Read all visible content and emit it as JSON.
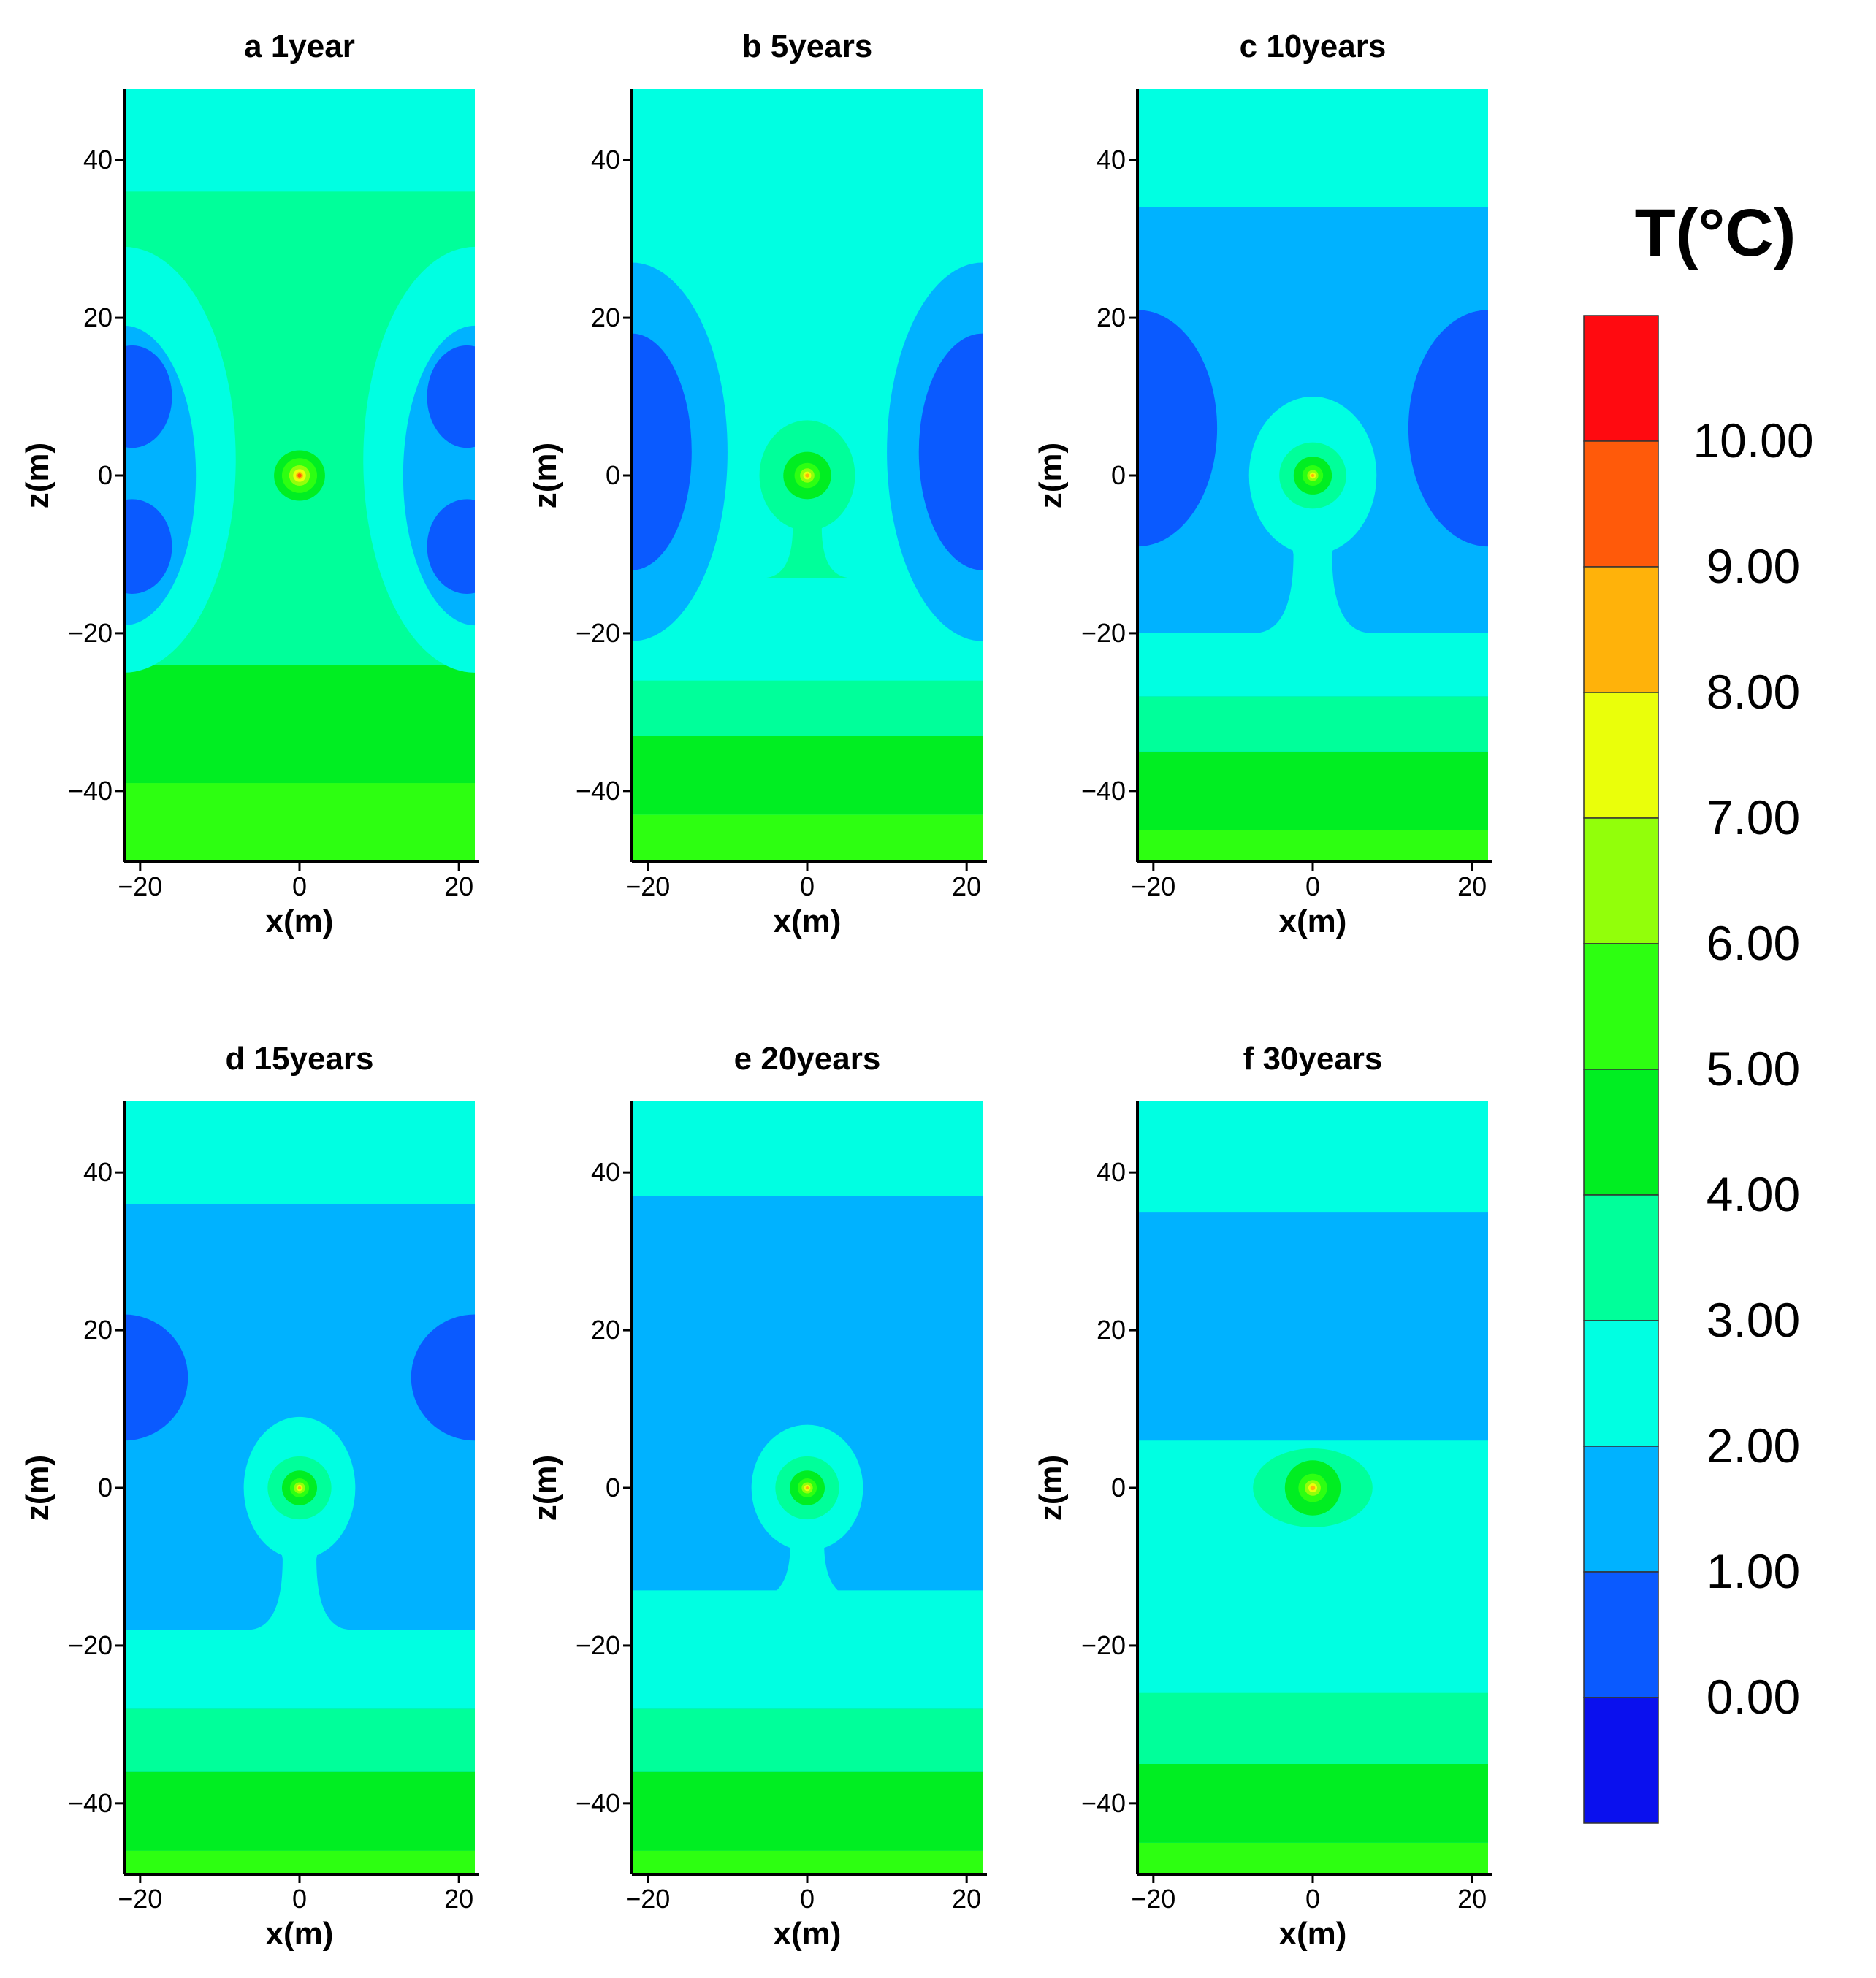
{
  "chart_data": {
    "type": "heatmap",
    "variable": "T",
    "colorbar": {
      "title": "T(°C)",
      "levels": [
        -1,
        0,
        1,
        2,
        3,
        4,
        5,
        6,
        7,
        8,
        9,
        10,
        11
      ],
      "tick_labels": [
        "0.00",
        "1.00",
        "2.00",
        "3.00",
        "4.00",
        "5.00",
        "6.00",
        "7.00",
        "8.00",
        "9.00",
        "10.00"
      ],
      "colors": [
        "#0a10ee",
        "#0a5aff",
        "#00b2ff",
        "#00ffe2",
        "#00ff9a",
        "#00ee22",
        "#2dff11",
        "#92ff0a",
        "#eaff0a",
        "#ffb20a",
        "#ff5a0a",
        "#ff0a10"
      ]
    },
    "x_range": [
      -22,
      22
    ],
    "z_range": [
      -49,
      49
    ],
    "x_ticks": [
      "-20",
      "0",
      "20"
    ],
    "z_ticks": [
      "40",
      "20",
      "0",
      "-20",
      "-40"
    ],
    "xlabel": "x(m)",
    "ylabel": "z(m)",
    "panels": [
      {
        "title": "a 1year",
        "background_level": 3,
        "bands": [
          {
            "z_min": -49,
            "z_max": -39,
            "level": 5
          },
          {
            "z_min": -39,
            "z_max": -24,
            "level": 4
          },
          {
            "z_min": 36,
            "z_max": 49,
            "level": 2
          }
        ],
        "cold_zones": [
          {
            "cx": -22,
            "cz": 2,
            "rx": 14,
            "rz": 27,
            "level": 2
          },
          {
            "cx": 22,
            "cz": 2,
            "rx": 14,
            "rz": 27,
            "level": 2
          },
          {
            "cx": -22,
            "cz": 0,
            "rx": 9,
            "rz": 19,
            "level": 1
          },
          {
            "cx": 22,
            "cz": 0,
            "rx": 9,
            "rz": 19,
            "level": 1
          },
          {
            "cx": -21,
            "cz": 10,
            "rx": 5,
            "rz": 6.5,
            "level": 0
          },
          {
            "cx": 21,
            "cz": 10,
            "rx": 5,
            "rz": 6.5,
            "level": 0
          },
          {
            "cx": -21,
            "cz": -9,
            "rx": 5,
            "rz": 6,
            "level": 0
          },
          {
            "cx": 21,
            "cz": -9,
            "rx": 5,
            "rz": 6,
            "level": 0
          }
        ],
        "plume": {
          "rx": 6.5,
          "rz": 6.5,
          "tail": 0,
          "level": 3
        },
        "source": {
          "rings": [
            {
              "r": 3.2,
              "level": 4
            },
            {
              "r": 2.2,
              "level": 5
            },
            {
              "r": 1.3,
              "level": 6
            },
            {
              "r": 0.8,
              "level": 7
            },
            {
              "r": 0.45,
              "level": 8
            },
            {
              "r": 0.25,
              "level": 9
            }
          ]
        }
      },
      {
        "title": "b 5years",
        "background_level": 2,
        "bands": [
          {
            "z_min": -49,
            "z_max": -43,
            "level": 5
          },
          {
            "z_min": -43,
            "z_max": -33,
            "level": 4
          },
          {
            "z_min": -33,
            "z_max": -26,
            "level": 3
          }
        ],
        "cold_zones": [
          {
            "cx": -22,
            "cz": 3,
            "rx": 12,
            "rz": 24,
            "level": 1
          },
          {
            "cx": 22,
            "cz": 3,
            "rx": 12,
            "rz": 24,
            "level": 1
          },
          {
            "cx": -22,
            "cz": 3,
            "rx": 7.5,
            "rz": 15,
            "level": 0
          },
          {
            "cx": 22,
            "cz": 3,
            "rx": 8,
            "rz": 15,
            "level": 0
          }
        ],
        "plume": {
          "rx": 6,
          "rz": 7,
          "tail": 13,
          "level": 3
        },
        "source": {
          "rings": [
            {
              "r": 3,
              "level": 4
            },
            {
              "r": 1.6,
              "level": 5
            },
            {
              "r": 0.9,
              "level": 6
            },
            {
              "r": 0.5,
              "level": 7
            },
            {
              "r": 0.25,
              "level": 8
            }
          ]
        }
      },
      {
        "title": "c 10years",
        "background_level": 1,
        "bands": [
          {
            "z_min": -49,
            "z_max": -45,
            "level": 5
          },
          {
            "z_min": -45,
            "z_max": -35,
            "level": 4
          },
          {
            "z_min": -35,
            "z_max": -28,
            "level": 3
          },
          {
            "z_min": -28,
            "z_max": -20,
            "level": 2
          },
          {
            "z_min": 34,
            "z_max": 49,
            "level": 2
          }
        ],
        "cold_zones": [
          {
            "cx": -22,
            "cz": 6,
            "rx": 10,
            "rz": 15,
            "level": 0
          },
          {
            "cx": 22,
            "cz": 6,
            "rx": 10,
            "rz": 15,
            "level": 0
          }
        ],
        "plume": {
          "rx": 8,
          "rz": 10,
          "tail": 20,
          "level": 2
        },
        "source": {
          "rings": [
            {
              "r": 4.2,
              "level": 3
            },
            {
              "r": 2.4,
              "level": 4
            },
            {
              "r": 1.3,
              "level": 5
            },
            {
              "r": 0.7,
              "level": 6
            },
            {
              "r": 0.4,
              "level": 7
            },
            {
              "r": 0.2,
              "level": 8
            }
          ]
        }
      },
      {
        "title": "d 15years",
        "background_level": 1,
        "bands": [
          {
            "z_min": -49,
            "z_max": -46,
            "level": 5
          },
          {
            "z_min": -46,
            "z_max": -36,
            "level": 4
          },
          {
            "z_min": -36,
            "z_max": -28,
            "level": 3
          },
          {
            "z_min": -28,
            "z_max": -18,
            "level": 2
          },
          {
            "z_min": 36,
            "z_max": 49,
            "level": 2
          }
        ],
        "cold_zones": [
          {
            "cx": -22,
            "cz": 14,
            "rx": 8,
            "rz": 8,
            "level": 0
          },
          {
            "cx": 22,
            "cz": 14,
            "rx": 8,
            "rz": 8,
            "level": 0
          }
        ],
        "plume": {
          "rx": 7,
          "rz": 9,
          "tail": 18,
          "level": 2
        },
        "source": {
          "rings": [
            {
              "r": 4,
              "level": 3
            },
            {
              "r": 2.2,
              "level": 4
            },
            {
              "r": 1.2,
              "level": 5
            },
            {
              "r": 0.7,
              "level": 6
            },
            {
              "r": 0.4,
              "level": 7
            },
            {
              "r": 0.2,
              "level": 8
            }
          ]
        }
      },
      {
        "title": "e 20years",
        "background_level": 1,
        "bands": [
          {
            "z_min": -49,
            "z_max": -46,
            "level": 5
          },
          {
            "z_min": -46,
            "z_max": -36,
            "level": 4
          },
          {
            "z_min": -36,
            "z_max": -28,
            "level": 3
          },
          {
            "z_min": -28,
            "z_max": -13,
            "level": 2
          },
          {
            "z_min": 37,
            "z_max": 49,
            "level": 2
          }
        ],
        "cold_zones": [],
        "plume": {
          "rx": 7,
          "rz": 8,
          "tail": 14,
          "level": 2
        },
        "source": {
          "rings": [
            {
              "r": 4,
              "level": 3
            },
            {
              "r": 2.2,
              "level": 4
            },
            {
              "r": 1.2,
              "level": 5
            },
            {
              "r": 0.7,
              "level": 6
            },
            {
              "r": 0.4,
              "level": 7
            },
            {
              "r": 0.2,
              "level": 8
            }
          ]
        }
      },
      {
        "title": "f 30years",
        "background_level": 2,
        "bands": [
          {
            "z_min": -49,
            "z_max": -45,
            "level": 5
          },
          {
            "z_min": -45,
            "z_max": -35,
            "level": 4
          },
          {
            "z_min": -35,
            "z_max": -26,
            "level": 3
          },
          {
            "z_min": 6,
            "z_max": 35,
            "level": 1
          }
        ],
        "cold_zones": [],
        "plume": {
          "rx": 7.5,
          "rz": 5,
          "tail": 0,
          "level": 3
        },
        "source": {
          "rings": [
            {
              "r": 3.5,
              "level": 4
            },
            {
              "r": 1.8,
              "level": 5
            },
            {
              "r": 1,
              "level": 6
            },
            {
              "r": 0.55,
              "level": 7
            },
            {
              "r": 0.3,
              "level": 8
            }
          ]
        }
      }
    ]
  }
}
